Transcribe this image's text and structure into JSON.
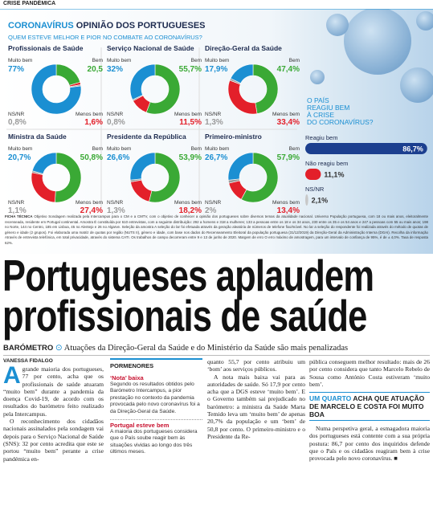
{
  "section": "CRISE PANDÉMICA",
  "infographic": {
    "title_lead": "CORONAVÍRUS",
    "title": "OPINIÃO DOS PORTUGUESES",
    "subtitle": "QUEM ESTEVE MELHOR E PIOR NO COMBATE AO CORONAVÍRUS?",
    "panels": [
      {
        "type": "donut",
        "title": "Profissionais de Saúde",
        "categories": [
          "Muito bem",
          "Bem",
          "Menos bem",
          "NS/NR"
        ],
        "values": [
          77,
          20.5,
          1.6,
          0.8
        ],
        "value_labels": [
          "77%",
          "20,5",
          "1,6%",
          "0,8%"
        ],
        "colors": [
          "#1b8fd2",
          "#3aa935",
          "#e3202a",
          "#9a9a9a"
        ]
      },
      {
        "type": "donut",
        "title": "Serviço Nacional de Saúde",
        "categories": [
          "Muito bem",
          "Bem",
          "Menos bem",
          "NS/NR"
        ],
        "values": [
          32,
          55.7,
          11.5,
          0.8
        ],
        "value_labels": [
          "32%",
          "55,7%",
          "11,5%",
          "0,8%"
        ],
        "colors": [
          "#1b8fd2",
          "#3aa935",
          "#e3202a",
          "#9a9a9a"
        ]
      },
      {
        "type": "donut",
        "title": "Direção-Geral da Saúde",
        "categories": [
          "Muito bem",
          "Bem",
          "Menos bem",
          "NS/NR"
        ],
        "values": [
          17.9,
          47.4,
          33.4,
          1.3
        ],
        "value_labels": [
          "17,9%",
          "47,4%",
          "33,4%",
          "1,3%"
        ],
        "colors": [
          "#1b8fd2",
          "#3aa935",
          "#e3202a",
          "#9a9a9a"
        ]
      },
      {
        "type": "donut",
        "title": "Ministra da Saúde",
        "categories": [
          "Muito bem",
          "Bem",
          "Menos bem",
          "NS/NR"
        ],
        "values": [
          20.7,
          50.8,
          27.4,
          1.1
        ],
        "value_labels": [
          "20,7%",
          "50,8%",
          "27,4%",
          "1,1%"
        ],
        "colors": [
          "#1b8fd2",
          "#3aa935",
          "#e3202a",
          "#9a9a9a"
        ]
      },
      {
        "type": "donut",
        "title": "Presidente da República",
        "categories": [
          "Muito bem",
          "Bem",
          "Menos bem",
          "NS/NR"
        ],
        "values": [
          26.6,
          53.9,
          18.2,
          1.3
        ],
        "value_labels": [
          "26,6%",
          "53,9%",
          "18,2%",
          "1,3%"
        ],
        "colors": [
          "#1b8fd2",
          "#3aa935",
          "#e3202a",
          "#9a9a9a"
        ]
      },
      {
        "type": "donut",
        "title": "Primeiro-ministro",
        "categories": [
          "Muito bem",
          "Bem",
          "Menos bem",
          "NS/NR"
        ],
        "values": [
          26.7,
          57.9,
          13.4,
          2
        ],
        "value_labels": [
          "26,7%",
          "57,9%",
          "13,4%",
          "2%"
        ],
        "colors": [
          "#1b8fd2",
          "#3aa935",
          "#e3202a",
          "#9a9a9a"
        ]
      }
    ],
    "question": [
      "O PAÍS",
      "REAGIU BEM",
      "À CRISE",
      "DO CORONAVÍRUS?"
    ],
    "bars": {
      "type": "bar",
      "categories": [
        "Reagiu bem",
        "Não reagiu bem",
        "NS/NR"
      ],
      "values": [
        86.7,
        11.1,
        2.1
      ],
      "value_labels": [
        "86,7%",
        "11,1%",
        "2,1%"
      ],
      "colors": [
        "#1c3f8f",
        "#e3202a",
        "#c8c8c8"
      ],
      "xlim": [
        0,
        100
      ]
    },
    "ficha_label": "FICHA TÉCNICA",
    "ficha_text": "Objetivo Sondagem realizada pela Intercampus para o CM e a CMTV, com o objetivo de conhecer a opinião dos portugueses sobre diversos temas da atualidade nacional. Universo População portuguesa, com 18 ou mais anos, eleitoralmente recenseada, residente em Portugal continental. Amostra É constituída por 610 entrevistas, com a seguinte distribuição: 292 a homens e 318 a mulheres; 133 a pessoas entre os 18 e os 34 anos, 230 entre os 35 e os 54 anos e 247 a pessoas com 55 ou mais anos; 198 no Norte, 144 no Centro, 185 em Lisboa, 45 no Alentejo e 26 no Algarve. Seleção da amostra A seleção do lar foi efetuada através da geração aleatória de números de telefone fixo/móvel. No lar a seleção do respondente foi realizada através do método de quotas de género e idade (2 grupos). Foi elaborada uma matriz de quotas por região (NUTS II), género e idade, com base nos dados do Recenseamento Eleitoral da população portuguesa (31/12/2019) da Direção-Geral da Administração Interna (DGAI). Recolha da informação Através de entrevista telefónica, em total privacidade, através do sistema CATI. Os trabalhos de campo decorreram entre 9 e 13 de junho de 2020. Margem de erro O erro máximo de amostragem, para um intervalo de confiança de 95%, é de ± 4,0%. Taxa de resposta 62%."
  },
  "article": {
    "headline": [
      "Portugueses aplaudem",
      "profissionais de saúde"
    ],
    "kicker": "BARÓMETRO",
    "deck": "Atuações da Direção-Geral da Saúde e do Ministério da Saúde são mais penalizadas",
    "byline": "VANESSA FIDALGO",
    "dropcap": "A",
    "col1": [
      "grande maioria dos portugueses, 77 por cento, acha que os profissionais de saúde atuaram “muito bem” durante a pandemia da doença Covid-19, de acordo com os resultados do barómetro feito realizado pela Intercampus.",
      "O reconhecimento dos cidadãos nacionais assinalados pela sondagem vai depois para o Serviço Nacional de Saúde (SNS): 32 por cento acredita que este se portou “muito bem” perante a crise pandémica en-"
    ],
    "sidebar": {
      "title": "PORMENORES",
      "items": [
        {
          "heading": "‘Nota’ baixa",
          "text": "Segundo os resultados obtidos pelo Barómetro Intercampus, a pior prestação no contexto da pandemia provocada pelo novo coronavírus foi a da Direção-Geral da Saúde."
        },
        {
          "heading": "Portugal esteve bem",
          "text": "A maioria dos portugueses considera que o País soube reagir bem às situações vividas ao longo dos três últimos meses."
        }
      ]
    },
    "col3": [
      "quanto 55,7 por cento atribuiu um ‘bom’ aos serviços públicos.",
      "A nota mais baixa vai para as autoridades de saúde. Só 17,9 por cento acha que a DGS esteve ‘muito bem’. E o Governo também sai prejudicado no barómetro: a ministra da Saúde Marta Temido leva um ‘muito bem’ de apenas 20,7% da população e um ‘bem’ de 50,8 por cento. O primeiro-ministro e o Presidente da Re-"
    ],
    "pullquote_lead": "UM QUARTO",
    "pullquote": "ACHA QUE ATUAÇÃO DE MARCELO E COSTA FOI MUITO BOA",
    "col4": [
      "pública conseguem melhor resultado: mais de 26 por cento considera que tanto Marcelo Rebelo de Sousa como António Costa estiveram ‘muito bem’.",
      "Numa perspetiva geral, a esmagadora maioria dos portugueses está contente com a sua própria postura: 86,7 por cento dos inquiridos defende que o País e os cidadãos reagiram bem à crise provocada pelo novo coronavírus. ■"
    ]
  }
}
